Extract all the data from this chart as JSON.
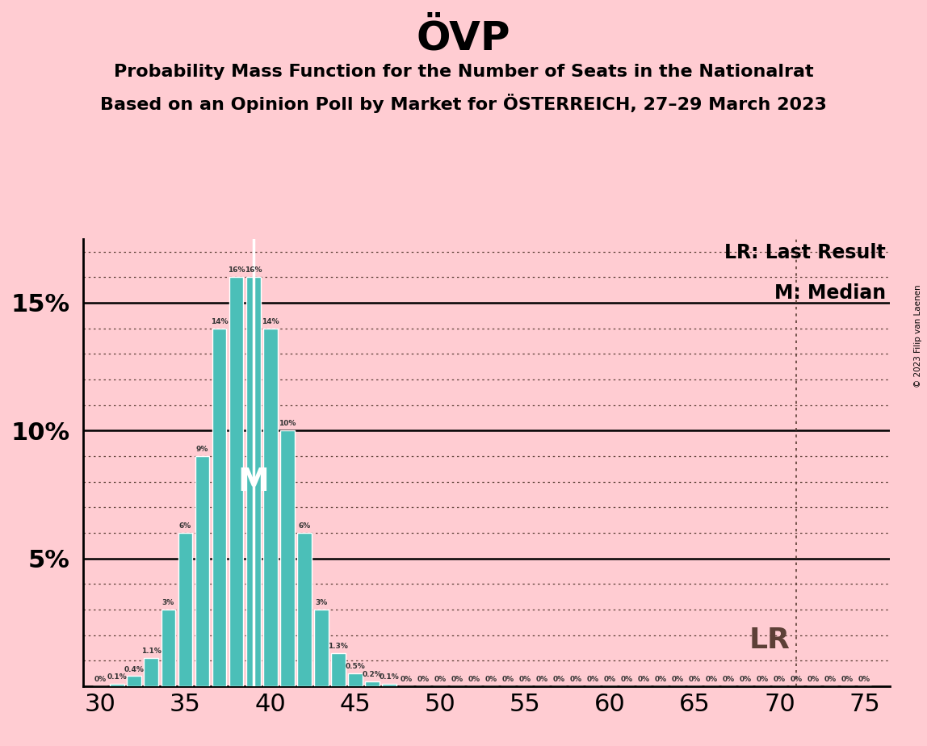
{
  "title": "ÖVP",
  "subtitle1": "Probability Mass Function for the Number of Seats in the Nationalrat",
  "subtitle2": "Based on an Opinion Poll by Market for ÖSTERREICH, 27–29 March 2023",
  "copyright": "© 2023 Filip van Laenen",
  "background_color": "#FFCCD2",
  "bar_color": "#4BBFB8",
  "bar_edge_color": "#FFFFFF",
  "title_color": "#000000",
  "ylabel_ticks": [
    "5%",
    "10%",
    "15%"
  ],
  "ytick_positions": [
    5,
    10,
    15
  ],
  "ylim": [
    0,
    17.5
  ],
  "xlim": [
    29.0,
    76.5
  ],
  "seats": [
    30,
    31,
    32,
    33,
    34,
    35,
    36,
    37,
    38,
    39,
    40,
    41,
    42,
    43,
    44,
    45,
    46,
    47,
    48,
    49,
    50,
    51,
    52,
    53,
    54,
    55,
    56,
    57,
    58,
    59,
    60,
    61,
    62,
    63,
    64,
    65,
    66,
    67,
    68,
    69,
    70,
    71,
    72,
    73,
    74,
    75
  ],
  "probabilities": [
    0.0,
    0.1,
    0.4,
    1.1,
    3.0,
    6.0,
    9.0,
    14.0,
    16.0,
    16.0,
    14.0,
    10.0,
    6.0,
    3.0,
    1.3,
    0.5,
    0.2,
    0.1,
    0.0,
    0.0,
    0.0,
    0.0,
    0.0,
    0.0,
    0.0,
    0.0,
    0.0,
    0.0,
    0.0,
    0.0,
    0.0,
    0.0,
    0.0,
    0.0,
    0.0,
    0.0,
    0.0,
    0.0,
    0.0,
    0.0,
    0.0,
    0.0,
    0.0,
    0.0,
    0.0,
    0.0
  ],
  "median_seat": 39,
  "last_result_seat": 71,
  "lr_label": "LR: Last Result",
  "m_label": "M: Median",
  "lr_line_label": "LR",
  "m_in_bar_label": "M",
  "xtick_positions": [
    30,
    35,
    40,
    45,
    50,
    55,
    60,
    65,
    70,
    75
  ],
  "dotted_line_color": "#5D4037",
  "solid_line_color": "#000000"
}
